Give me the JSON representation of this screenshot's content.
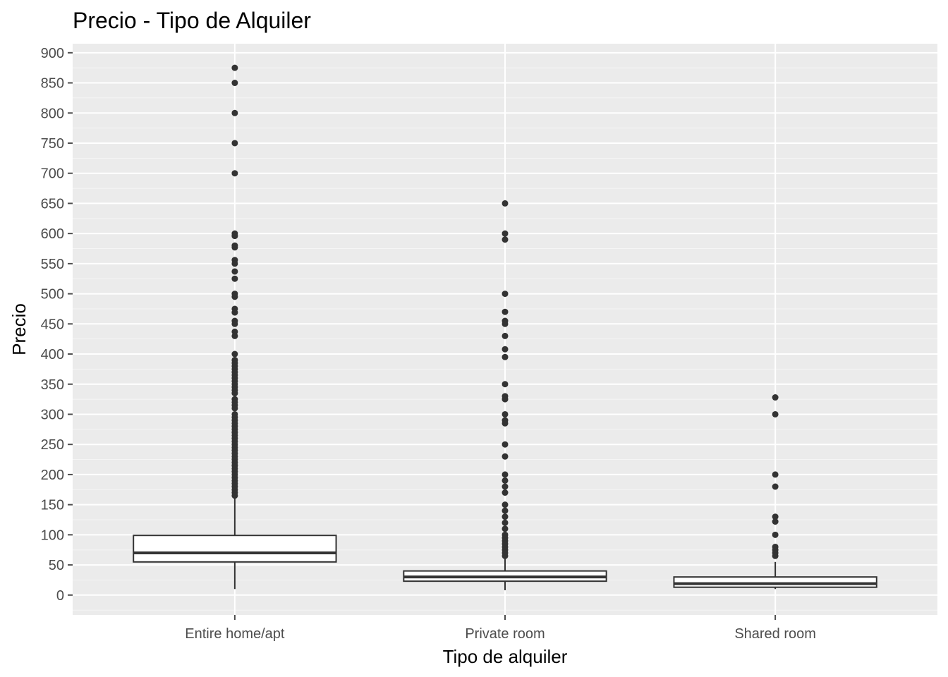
{
  "chart_data": {
    "type": "boxplot",
    "title": "Precio - Tipo de Alquiler",
    "xlabel": "Tipo de alquiler",
    "ylabel": "Precio",
    "ylim": [
      -33,
      915
    ],
    "yticks": [
      0,
      50,
      100,
      150,
      200,
      250,
      300,
      350,
      400,
      450,
      500,
      550,
      600,
      650,
      700,
      750,
      800,
      850,
      900
    ],
    "grid": true,
    "categories": [
      "Entire home/apt",
      "Private room",
      "Shared room"
    ],
    "boxes": [
      {
        "category": "Entire home/apt",
        "whisker_low": 10,
        "q1": 55,
        "median": 70,
        "q3": 99,
        "whisker_high": 163,
        "outliers": [
          875,
          850,
          800,
          750,
          700,
          600,
          596,
          580,
          577,
          556,
          550,
          537,
          525,
          500,
          495,
          475,
          469,
          455,
          450,
          437,
          430,
          400,
          390,
          385,
          380,
          375,
          370,
          365,
          360,
          355,
          350,
          345,
          340,
          335,
          325,
          320,
          315,
          310,
          300,
          295,
          290,
          285,
          280,
          275,
          270,
          265,
          260,
          255,
          250,
          245,
          240,
          235,
          230,
          225,
          220,
          215,
          210,
          205,
          200,
          195,
          190,
          185,
          180,
          175,
          170,
          165
        ]
      },
      {
        "category": "Private room",
        "whisker_low": 8,
        "q1": 23,
        "median": 30,
        "q3": 40,
        "whisker_high": 60,
        "outliers": [
          650,
          600,
          590,
          500,
          470,
          455,
          450,
          430,
          408,
          395,
          350,
          330,
          325,
          300,
          290,
          285,
          250,
          230,
          200,
          190,
          180,
          170,
          150,
          140,
          130,
          120,
          110,
          100,
          95,
          90,
          85,
          80,
          75,
          70,
          65
        ]
      },
      {
        "category": "Shared room",
        "whisker_low": 10,
        "q1": 13,
        "median": 19,
        "q3": 30,
        "whisker_high": 55,
        "outliers": [
          328,
          300,
          200,
          180,
          130,
          122,
          100,
          80,
          75,
          70,
          65
        ]
      }
    ],
    "colors": {
      "panel_background": "#ebebeb",
      "grid_major": "#ffffff",
      "grid_minor": "#f5f5f5",
      "box_fill": "#ffffff",
      "box_line": "#333333",
      "outlier": "#333333",
      "tick_text": "#4d4d4d"
    }
  }
}
